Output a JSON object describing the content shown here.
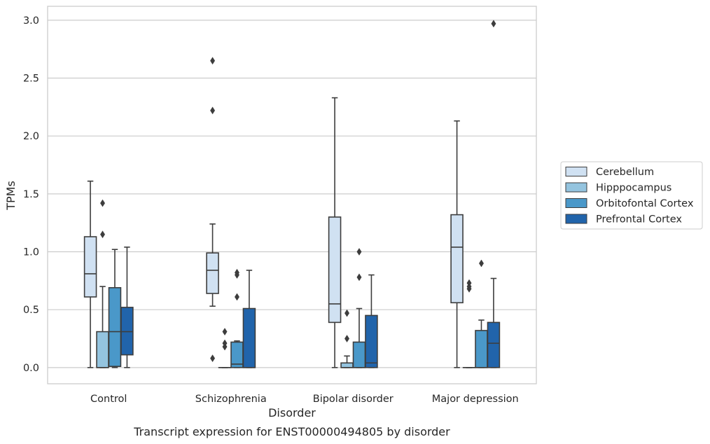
{
  "chart_data": {
    "type": "box",
    "caption": "Transcript expression for ENST00000494805 by disorder",
    "xlabel": "Disorder",
    "ylabel": "TPMs",
    "ylim": [
      -0.14,
      3.12
    ],
    "yticks": [
      0.0,
      0.5,
      1.0,
      1.5,
      2.0,
      2.5,
      3.0
    ],
    "ytick_labels": [
      "0.0",
      "0.5",
      "1.0",
      "1.5",
      "2.0",
      "2.5",
      "3.0"
    ],
    "grid": "horizontal",
    "legend_placement": "right",
    "categories": [
      "Control",
      "Schizophrenia",
      "Bipolar disorder",
      "Major depression"
    ],
    "series": [
      {
        "name": "Cerebellum",
        "color": "#d0e1f2",
        "boxes": [
          {
            "whislo": 0.0,
            "q1": 0.61,
            "med": 0.81,
            "q3": 1.13,
            "whishi": 1.61,
            "fliers": []
          },
          {
            "whislo": 0.53,
            "q1": 0.64,
            "med": 0.84,
            "q3": 0.99,
            "whishi": 1.24,
            "fliers": [
              0.08,
              2.22,
              2.65
            ]
          },
          {
            "whislo": 0.0,
            "q1": 0.39,
            "med": 0.55,
            "q3": 1.3,
            "whishi": 2.33,
            "fliers": []
          },
          {
            "whislo": 0.0,
            "q1": 0.56,
            "med": 1.04,
            "q3": 1.32,
            "whishi": 2.13,
            "fliers": []
          }
        ]
      },
      {
        "name": "Hipppocampus",
        "color": "#94c4df",
        "boxes": [
          {
            "whislo": 0.0,
            "q1": 0.0,
            "med": 0.0,
            "q3": 0.31,
            "whishi": 0.7,
            "fliers": [
              1.15,
              1.42
            ]
          },
          {
            "whislo": 0.0,
            "q1": 0.0,
            "med": 0.0,
            "q3": 0.0,
            "whishi": 0.0,
            "fliers": [
              0.18,
              0.21,
              0.31
            ]
          },
          {
            "whislo": 0.0,
            "q1": 0.0,
            "med": 0.0,
            "q3": 0.04,
            "whishi": 0.1,
            "fliers": [
              0.25,
              0.47
            ]
          },
          {
            "whislo": 0.0,
            "q1": 0.0,
            "med": 0.0,
            "q3": 0.0,
            "whishi": 0.0,
            "fliers": [
              0.68,
              0.7,
              0.73
            ]
          }
        ]
      },
      {
        "name": "Orbitofontal Cortex",
        "color": "#4a98c9",
        "boxes": [
          {
            "whislo": 0.0,
            "q1": 0.01,
            "med": 0.31,
            "q3": 0.69,
            "whishi": 1.02,
            "fliers": []
          },
          {
            "whislo": 0.0,
            "q1": 0.0,
            "med": 0.03,
            "q3": 0.22,
            "whishi": 0.23,
            "fliers": [
              0.61,
              0.8,
              0.82
            ]
          },
          {
            "whislo": 0.0,
            "q1": 0.0,
            "med": 0.0,
            "q3": 0.22,
            "whishi": 0.51,
            "fliers": [
              0.78,
              1.0
            ]
          },
          {
            "whislo": 0.0,
            "q1": 0.0,
            "med": 0.0,
            "q3": 0.32,
            "whishi": 0.41,
            "fliers": [
              0.9
            ]
          }
        ]
      },
      {
        "name": "Prefrontal Cortex",
        "color": "#2164ab",
        "boxes": [
          {
            "whislo": 0.0,
            "q1": 0.11,
            "med": 0.31,
            "q3": 0.52,
            "whishi": 1.04,
            "fliers": []
          },
          {
            "whislo": 0.0,
            "q1": 0.0,
            "med": 0.0,
            "q3": 0.51,
            "whishi": 0.84,
            "fliers": []
          },
          {
            "whislo": 0.0,
            "q1": 0.0,
            "med": 0.04,
            "q3": 0.45,
            "whishi": 0.8,
            "fliers": []
          },
          {
            "whislo": 0.0,
            "q1": 0.0,
            "med": 0.21,
            "q3": 0.39,
            "whishi": 0.77,
            "fliers": [
              2.97
            ]
          }
        ]
      }
    ]
  }
}
